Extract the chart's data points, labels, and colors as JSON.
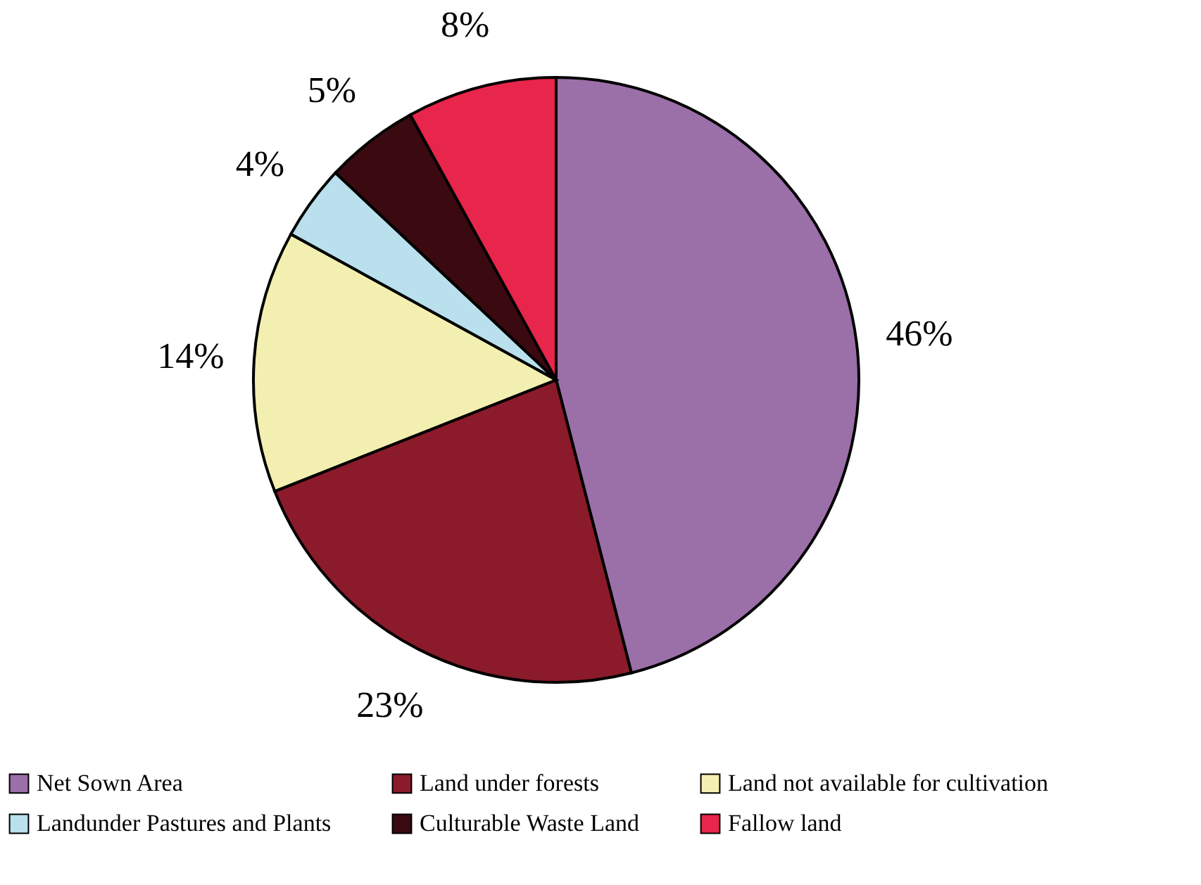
{
  "chart_data": {
    "type": "pie",
    "categories": [
      "Net Sown Area",
      "Land under forests",
      "Land not available for cultivation",
      "Landunder Pastures and Plants",
      "Culturable Waste Land",
      "Fallow land"
    ],
    "values": [
      46,
      23,
      14,
      4,
      5,
      8
    ],
    "value_labels": [
      "46%",
      "23%",
      "14%",
      "4%",
      "5%",
      "8%"
    ],
    "colors": [
      "#9b6fa8",
      "#8b1a2a",
      "#f3efb0",
      "#b9e0ec",
      "#3a0a10",
      "#e8254a"
    ],
    "legend": "bottom"
  }
}
